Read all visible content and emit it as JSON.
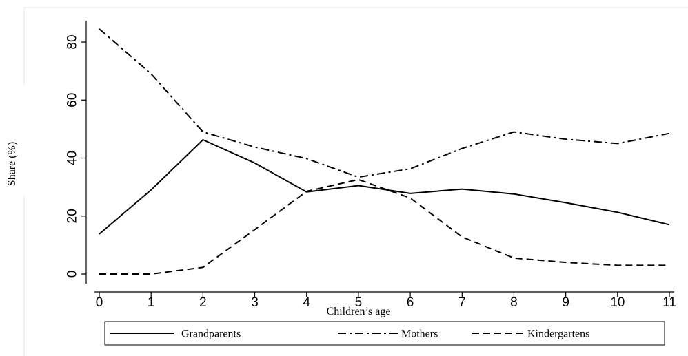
{
  "chart_data": {
    "type": "line",
    "xlabel": "Children’s age",
    "ylabel": "Share (%)",
    "x": [
      0,
      1,
      2,
      3,
      4,
      5,
      6,
      7,
      8,
      9,
      10,
      11
    ],
    "x_ticks": [
      "0",
      "1",
      "2",
      "3",
      "4",
      "5",
      "6",
      "7",
      "8",
      "9",
      "10",
      "11"
    ],
    "y_ticks": [
      "0",
      "20",
      "40",
      "60",
      "80"
    ],
    "xlim": [
      0,
      11
    ],
    "ylim": [
      0,
      87
    ],
    "grid": false,
    "legend_position": "bottom",
    "series": [
      {
        "name": "Grandparents",
        "dash": "solid",
        "values": [
          13.8,
          29,
          46.3,
          38.3,
          28.3,
          30.5,
          27.8,
          29.3,
          27.6,
          24.6,
          21.3,
          17
        ]
      },
      {
        "name": "Mothers",
        "dash": "dash-dot",
        "values": [
          84.5,
          69,
          49,
          43.8,
          39.8,
          33.4,
          36.3,
          43.3,
          49,
          46.5,
          45,
          48.5
        ]
      },
      {
        "name": "Kindergartens",
        "dash": "dash",
        "values": [
          0,
          0,
          2.3,
          15.3,
          28.5,
          32.6,
          26.2,
          12.8,
          5.5,
          4,
          3,
          3
        ]
      }
    ]
  }
}
